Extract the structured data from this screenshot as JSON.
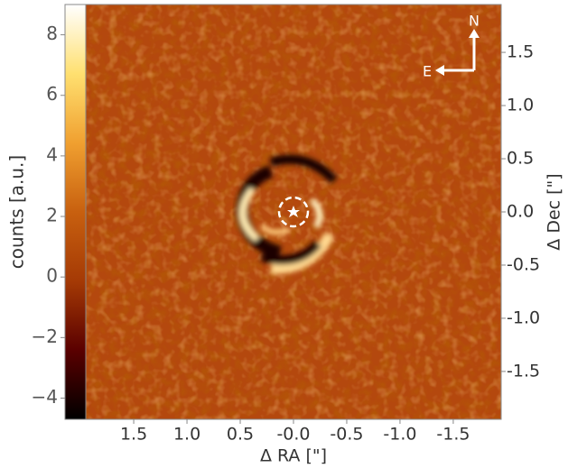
{
  "chart_data": {
    "type": "image",
    "xlabel": "Δ RA [\"]",
    "ylabel": "Δ Dec [\"]",
    "xlim": [
      1.95,
      -1.95
    ],
    "ylim": [
      -1.95,
      1.95
    ],
    "xticks": [
      1.5,
      {
        "value": 1,
        "label": "1.0"
      },
      0.5,
      {
        "value": 0,
        "label": "-0.0"
      },
      -0.5,
      {
        "value": -1,
        "label": "-1.0"
      },
      -1.5
    ],
    "yticks": [
      1.5,
      {
        "value": 1,
        "label": "1.0"
      },
      0.5,
      {
        "value": 0,
        "label": "0.0"
      },
      {
        "value": -0.5,
        "label": "-0.5"
      },
      {
        "value": -1,
        "label": "-1.0"
      },
      {
        "value": -1.5,
        "label": "-1.5"
      }
    ],
    "colorbar": {
      "label": "counts [a.u.]",
      "lim": [
        -4.7,
        9.0
      ],
      "ticks": [
        {
          "value": -4,
          "label": "−4"
        },
        {
          "value": -2,
          "label": "−2"
        },
        0,
        2,
        4,
        6,
        8
      ],
      "colors": [
        "#000000",
        "#5a0000",
        "#a53a05",
        "#c8600f",
        "#f0a030",
        "#ffe070",
        "#ffffff"
      ]
    },
    "compass": {
      "north": "N",
      "east": "E"
    }
  }
}
